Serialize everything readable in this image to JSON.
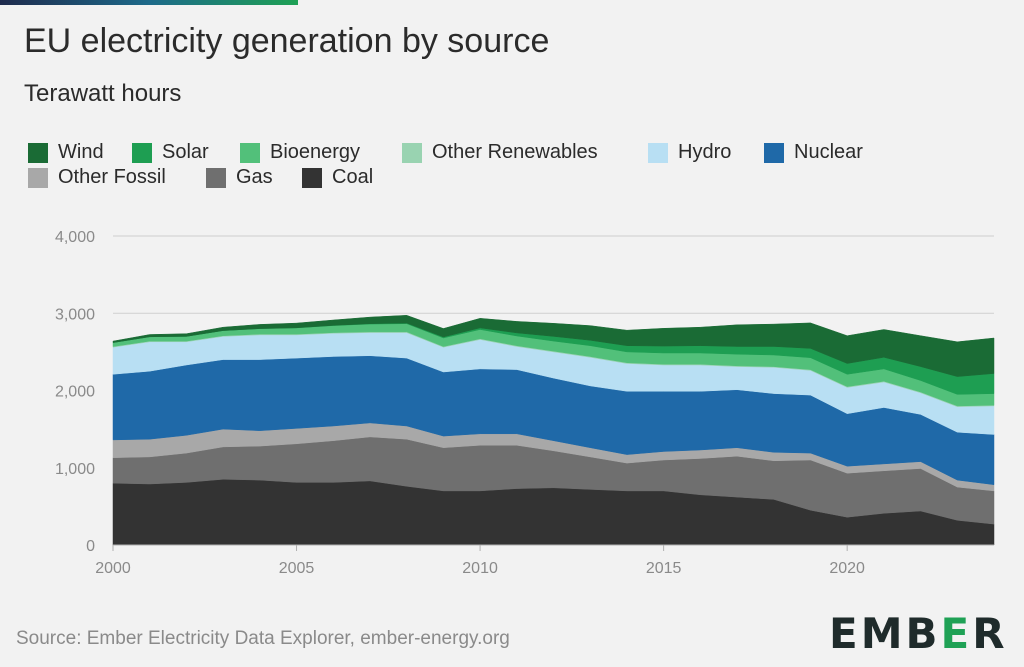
{
  "title": "EU electricity generation by source",
  "subtitle": "Terawatt hours",
  "source": "Source: Ember Electricity Data Explorer, ember-energy.org",
  "logo": {
    "text_before": "EMB",
    "text_accent": "E",
    "text_after": "R"
  },
  "chart_data": {
    "type": "area",
    "stacked": true,
    "title": "EU electricity generation by source",
    "ylabel": "Terawatt hours",
    "xlabel": "",
    "ylim": [
      0,
      4000
    ],
    "yticks": [
      0,
      1000,
      2000,
      3000,
      4000
    ],
    "ytick_labels": [
      "0",
      "1,000",
      "2,000",
      "3,000",
      "4,000"
    ],
    "xticks": [
      2000,
      2005,
      2010,
      2015,
      2020
    ],
    "xlim": [
      2000,
      2024
    ],
    "grid": "horizontal",
    "legend_placement": "top-left",
    "x": [
      2000,
      2001,
      2002,
      2003,
      2004,
      2005,
      2006,
      2007,
      2008,
      2009,
      2010,
      2011,
      2012,
      2013,
      2014,
      2015,
      2016,
      2017,
      2018,
      2019,
      2020,
      2021,
      2022,
      2023,
      2024
    ],
    "stack_order": [
      "Coal",
      "Gas",
      "Other Fossil",
      "Nuclear",
      "Hydro",
      "Other Renewables",
      "Bioenergy",
      "Solar",
      "Wind"
    ],
    "series": [
      {
        "name": "Wind",
        "color": "#1a6b35",
        "values": [
          20,
          30,
          35,
          45,
          55,
          60,
          70,
          85,
          100,
          110,
          125,
          150,
          170,
          190,
          200,
          230,
          240,
          280,
          290,
          330,
          360,
          360,
          400,
          450,
          460
        ]
      },
      {
        "name": "Solar",
        "color": "#1e9e52",
        "values": [
          0,
          0,
          0,
          0,
          1,
          2,
          3,
          5,
          8,
          12,
          20,
          40,
          60,
          70,
          80,
          90,
          95,
          100,
          110,
          120,
          140,
          150,
          180,
          230,
          260
        ]
      },
      {
        "name": "Bioenergy",
        "color": "#52c07a",
        "values": [
          50,
          55,
          60,
          65,
          70,
          80,
          90,
          100,
          105,
          110,
          120,
          125,
          130,
          140,
          140,
          145,
          145,
          150,
          150,
          155,
          160,
          160,
          150,
          150,
          150
        ]
      },
      {
        "name": "Other Renewables",
        "color": "#99d3b1",
        "values": [
          10,
          10,
          10,
          10,
          10,
          10,
          10,
          10,
          10,
          10,
          10,
          10,
          10,
          10,
          10,
          10,
          10,
          10,
          10,
          10,
          10,
          10,
          10,
          10,
          10
        ]
      },
      {
        "name": "Hydro",
        "color": "#b8dff3",
        "values": [
          350,
          380,
          300,
          300,
          320,
          300,
          300,
          300,
          330,
          320,
          380,
          300,
          340,
          370,
          360,
          340,
          340,
          300,
          340,
          320,
          340,
          330,
          280,
          330,
          370
        ]
      },
      {
        "name": "Nuclear",
        "color": "#1f69a8",
        "values": [
          850,
          880,
          910,
          900,
          920,
          910,
          900,
          870,
          880,
          830,
          840,
          830,
          810,
          800,
          820,
          780,
          760,
          750,
          760,
          750,
          680,
          730,
          610,
          620,
          650
        ]
      },
      {
        "name": "Other Fossil",
        "color": "#a8a8a8",
        "values": [
          230,
          230,
          230,
          230,
          200,
          200,
          190,
          180,
          170,
          150,
          150,
          150,
          130,
          120,
          110,
          110,
          110,
          110,
          110,
          90,
          90,
          90,
          90,
          90,
          80
        ]
      },
      {
        "name": "Gas",
        "color": "#6f6f6f",
        "values": [
          330,
          350,
          380,
          420,
          440,
          500,
          540,
          570,
          610,
          560,
          590,
          560,
          480,
          420,
          360,
          400,
          470,
          530,
          500,
          650,
          570,
          550,
          550,
          430,
          430
        ]
      },
      {
        "name": "Coal",
        "color": "#333333",
        "values": [
          800,
          790,
          810,
          850,
          840,
          810,
          810,
          830,
          760,
          700,
          700,
          730,
          740,
          720,
          700,
          700,
          650,
          620,
          590,
          450,
          360,
          410,
          440,
          320,
          270
        ]
      }
    ]
  }
}
